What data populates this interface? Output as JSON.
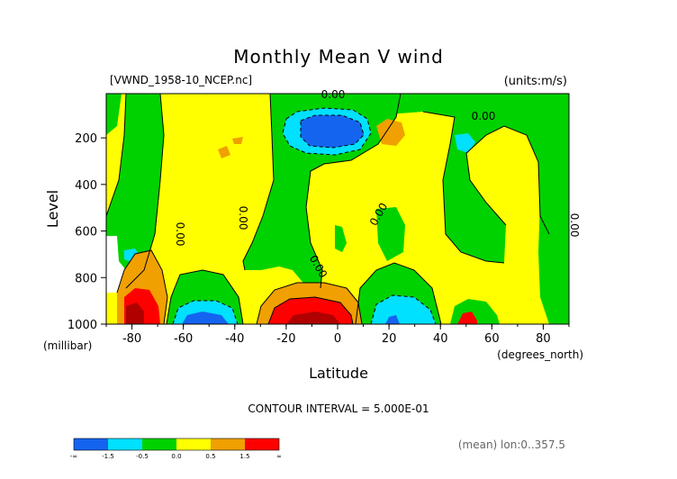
{
  "chart_data": {
    "type": "contour",
    "title": "Monthly Mean V wind",
    "file_label": "[VWND_1958-10_NCEP.nc]",
    "units_label": "(units:m/s)",
    "xlabel": "Latitude",
    "x_units": "(degrees_north)",
    "ylabel": "Level",
    "y_units": "(millibar)",
    "xlim": [
      -90,
      90
    ],
    "ylim": [
      1000,
      10
    ],
    "x_ticks": [
      -80,
      -60,
      -40,
      -20,
      0,
      20,
      40,
      60,
      80
    ],
    "y_ticks": [
      200,
      400,
      600,
      800,
      1000
    ],
    "contour_interval_text": "CONTOUR INTERVAL = 5.000E-01",
    "contour_label": "0.00",
    "mean_text": "(mean) lon:0..357.5",
    "colorbar": {
      "labels": [
        "-∞",
        "-1.5",
        "-0.5",
        "0.0",
        "0.5",
        "1.5",
        "∞"
      ],
      "colors": [
        "#1464f0",
        "#00e0ff",
        "#00d200",
        "#ffff00",
        "#f0a000",
        "#ff0000"
      ]
    }
  },
  "colors": {
    "neg_strong": "#1464f0",
    "neg_weak": "#00e0ff",
    "near_zero_neg": "#00d200",
    "near_zero_pos": "#ffff00",
    "pos_weak": "#f0a000",
    "pos_strong": "#ff0000",
    "dark_red": "#b00000"
  }
}
